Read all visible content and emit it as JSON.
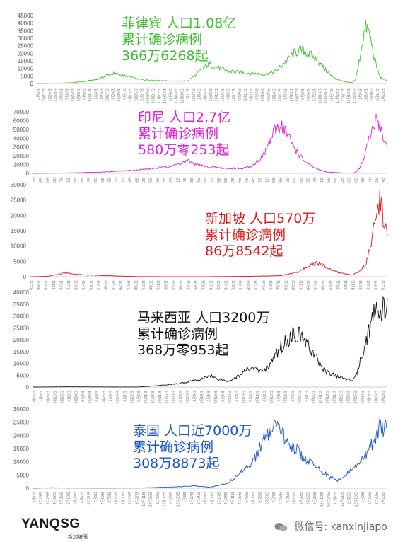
{
  "charts": [
    {
      "id": "philippines",
      "color": "#3bbf2e",
      "annotation": [
        "菲律宾 人口1.08亿",
        "累计确诊病例",
        "366万6268起"
      ],
      "yticks": [
        0,
        5000,
        10000,
        15000,
        20000,
        25000,
        30000,
        35000,
        40000,
        45000
      ],
      "xticks": [
        "3月5日",
        "3月17日",
        "3月29日",
        "4月10日",
        "4月22日",
        "5月4日",
        "5月16日",
        "5月28日",
        "6月9日",
        "6月21日",
        "7月3日",
        "7月15日",
        "7月27日",
        "8月8日",
        "8月20日",
        "9月1日",
        "9月13日",
        "9月25日",
        "10月7日",
        "10月19日",
        "10月31日",
        "11月12日",
        "11月24日",
        "12月6日",
        "12月18日",
        "12月30日",
        "1月11日",
        "1月23日",
        "2月4日",
        "2月16日",
        "2月28日",
        "3月12日",
        "3月24日",
        "4月5日",
        "4月17日",
        "4月29日",
        "5月11日",
        "5月23日",
        "6月4日",
        "6月16日",
        "6月28日",
        "7月10日",
        "7月22日",
        "8月3日",
        "8月15日",
        "8月27日",
        "9月8日",
        "9月20日",
        "10月2日",
        "10月14日",
        "10月26日",
        "11月7日",
        "11月19日",
        "12月1日",
        "12月13日",
        "12月25日",
        "1月6日",
        "1月18日",
        "1月30日",
        "2月11日",
        "2月23日"
      ]
    },
    {
      "id": "indonesia",
      "color": "#e21fd6",
      "annotation": [
        "印尼  人口2.7亿",
        "累计确诊病例",
        "580万零253起"
      ],
      "yticks": [
        0,
        10000,
        20000,
        30000,
        40000,
        50000,
        60000,
        70000
      ],
      "xticks": [
        "3月2日",
        "3月16日",
        "3月30日",
        "4月13日",
        "4月27日",
        "5月11日",
        "5月25日",
        "6月8日",
        "6月22日",
        "7月6日",
        "7月20日",
        "8月3日",
        "8月17日",
        "8月31日",
        "9月14日",
        "9月28日",
        "10月12日",
        "10月26日",
        "11月9日",
        "11月23日",
        "12月7日",
        "12月21日",
        "1月4日",
        "1月18日",
        "2月1日",
        "2月15日",
        "3月1日",
        "3月15日",
        "3月29日",
        "4月12日",
        "4月26日",
        "5月10日",
        "5月24日",
        "6月7日",
        "6月21日",
        "7月5日",
        "7月19日",
        "8月2日",
        "8月16日",
        "8月30日",
        "9月13日",
        "9月27日",
        "10月11日",
        "10月25日",
        "11月8日",
        "11月22日",
        "12月6日",
        "12月20日",
        "1月3日",
        "1月17日",
        "1月31日",
        "2月14日"
      ]
    },
    {
      "id": "singapore",
      "color": "#e01b1b",
      "annotation": [
        "新加坡  人口570万",
        "累计确诊病例",
        "86万8542起"
      ],
      "yticks": [
        0,
        5000,
        10000,
        15000,
        20000,
        25000,
        30000
      ],
      "xticks": [
        "1月23日",
        "2月8日",
        "2月24日",
        "3月11日",
        "3月27日",
        "4月12日",
        "4月28日",
        "5月14日",
        "5月30日",
        "6月15日",
        "7月1日",
        "7月17日",
        "8月2日",
        "8月18日",
        "9月3日",
        "9月19日",
        "10月5日",
        "10月21日",
        "11月6日",
        "11月22日",
        "12月8日",
        "12月24日",
        "1月9日",
        "1月25日",
        "2月10日",
        "2月26日",
        "3月14日",
        "3月30日",
        "4月15日",
        "5月1日",
        "5月17日",
        "6月2日",
        "6月18日",
        "7月4日",
        "7月20日",
        "8月5日",
        "8月21日",
        "9月6日",
        "9月22日",
        "10月8日",
        "10月24日",
        "11月9日",
        "11月25日",
        "12月11日",
        "12月27日",
        "1月12日",
        "1月28日",
        "2月13日"
      ]
    },
    {
      "id": "malaysia",
      "color": "#111111",
      "annotation": [
        "马来西亚  人口3200万",
        "累计确诊病例",
        "368万零953起"
      ],
      "yticks": [
        0,
        5000,
        10000,
        15000,
        20000,
        25000,
        30000,
        35000,
        40000
      ],
      "xticks": [
        "1月25日",
        "2月9日",
        "2月24日",
        "3月10日",
        "3月25日",
        "4月9日",
        "4月24日",
        "5月9日",
        "5月24日",
        "6月8日",
        "6月23日",
        "7月8日",
        "7月23日",
        "8月7日",
        "8月22日",
        "9月6日",
        "9月21日",
        "10月6日",
        "10月21日",
        "11月5日",
        "11月20日",
        "12月5日",
        "12月20日",
        "1月4日",
        "1月19日",
        "2月3日",
        "2月18日",
        "3月5日",
        "3月20日",
        "4月4日",
        "4月19日",
        "5月4日",
        "5月19日",
        "6月3日",
        "6月18日",
        "7月3日",
        "7月18日",
        "8月2日",
        "8月17日",
        "9月1日",
        "9月16日",
        "10月1日",
        "10月16日",
        "10月31日",
        "11月15日",
        "11月30日",
        "12月15日",
        "12月30日",
        "1月14日",
        "1月29日",
        "2月13日"
      ]
    },
    {
      "id": "thailand",
      "color": "#1a56c4",
      "annotation": [
        "泰国  人口近7000万",
        "累计确诊病例",
        "308万8873起"
      ],
      "yticks": [
        0,
        5000,
        10000,
        15000,
        20000,
        25000,
        30000
      ],
      "xticks": [
        "3月1日",
        "3月15日",
        "3月29日",
        "4月12日",
        "4月26日",
        "5月10日",
        "5月24日",
        "6月7日",
        "6月21日",
        "7月5日",
        "7月19日",
        "8月2日",
        "8月16日",
        "8月30日",
        "9月13日",
        "9月27日",
        "10月11日",
        "10月25日",
        "11月8日",
        "11月22日",
        "12月6日",
        "12月20日",
        "1月3日",
        "1月17日",
        "1月31日",
        "2月14日",
        "2月28日",
        "3月14日",
        "3月28日",
        "4月11日",
        "4月25日",
        "5月9日",
        "5月23日",
        "6月6日",
        "6月20日",
        "7月4日",
        "7月18日",
        "8月1日",
        "8月15日",
        "8月29日",
        "9月12日",
        "9月26日",
        "10月10日",
        "10月24日",
        "11月7日",
        "11月21日",
        "12月5日",
        "12月19日",
        "1月2日",
        "1月16日",
        "1月30日",
        "2月13日"
      ]
    }
  ],
  "chart_data": [
    {
      "type": "line",
      "series": [
        {
          "values_shape": "Philippines daily confirmed cases"
        }
      ],
      "ylim": [
        0,
        45000
      ],
      "anchors": [
        [
          0,
          0
        ],
        [
          0.05,
          200
        ],
        [
          0.1,
          500
        ],
        [
          0.14,
          1500
        ],
        [
          0.18,
          3000
        ],
        [
          0.2,
          5500
        ],
        [
          0.22,
          6500
        ],
        [
          0.25,
          5000
        ],
        [
          0.28,
          3500
        ],
        [
          0.3,
          2500
        ],
        [
          0.35,
          2000
        ],
        [
          0.4,
          1500
        ],
        [
          0.43,
          1800
        ],
        [
          0.45,
          5000
        ],
        [
          0.47,
          9000
        ],
        [
          0.49,
          13000
        ],
        [
          0.51,
          11000
        ],
        [
          0.55,
          8000
        ],
        [
          0.6,
          7000
        ],
        [
          0.65,
          6000
        ],
        [
          0.68,
          8000
        ],
        [
          0.7,
          12000
        ],
        [
          0.72,
          17000
        ],
        [
          0.74,
          21000
        ],
        [
          0.76,
          22000
        ],
        [
          0.78,
          19000
        ],
        [
          0.8,
          15000
        ],
        [
          0.82,
          10000
        ],
        [
          0.84,
          5000
        ],
        [
          0.86,
          2500
        ],
        [
          0.88,
          1000
        ],
        [
          0.9,
          500
        ],
        [
          0.91,
          3000
        ],
        [
          0.92,
          15000
        ],
        [
          0.93,
          30000
        ],
        [
          0.94,
          38000
        ],
        [
          0.95,
          32000
        ],
        [
          0.96,
          20000
        ],
        [
          0.97,
          10000
        ],
        [
          0.98,
          4000
        ],
        [
          1,
          1500
        ]
      ]
    },
    {
      "type": "line",
      "series": [
        {
          "values_shape": "Indonesia daily confirmed cases"
        }
      ],
      "ylim": [
        0,
        70000
      ],
      "anchors": [
        [
          0,
          0
        ],
        [
          0.1,
          500
        ],
        [
          0.2,
          1500
        ],
        [
          0.3,
          4000
        ],
        [
          0.35,
          6000
        ],
        [
          0.4,
          9000
        ],
        [
          0.42,
          12000
        ],
        [
          0.44,
          14000
        ],
        [
          0.46,
          10000
        ],
        [
          0.5,
          7000
        ],
        [
          0.55,
          5500
        ],
        [
          0.6,
          6000
        ],
        [
          0.62,
          9000
        ],
        [
          0.65,
          20000
        ],
        [
          0.67,
          38000
        ],
        [
          0.69,
          52000
        ],
        [
          0.7,
          56000
        ],
        [
          0.71,
          50000
        ],
        [
          0.73,
          35000
        ],
        [
          0.75,
          22000
        ],
        [
          0.77,
          12000
        ],
        [
          0.8,
          5000
        ],
        [
          0.83,
          1500
        ],
        [
          0.88,
          400
        ],
        [
          0.9,
          300
        ],
        [
          0.91,
          1000
        ],
        [
          0.92,
          5000
        ],
        [
          0.93,
          12000
        ],
        [
          0.95,
          40000
        ],
        [
          0.97,
          62000
        ],
        [
          0.98,
          55000
        ],
        [
          0.99,
          38000
        ],
        [
          1,
          30000
        ]
      ]
    },
    {
      "type": "line",
      "series": [
        {
          "values_shape": "Singapore daily confirmed cases"
        }
      ],
      "ylim": [
        0,
        30000
      ],
      "anchors": [
        [
          0,
          0
        ],
        [
          0.05,
          100
        ],
        [
          0.08,
          800
        ],
        [
          0.1,
          1200
        ],
        [
          0.12,
          900
        ],
        [
          0.15,
          600
        ],
        [
          0.2,
          400
        ],
        [
          0.25,
          200
        ],
        [
          0.3,
          50
        ],
        [
          0.4,
          20
        ],
        [
          0.5,
          30
        ],
        [
          0.6,
          100
        ],
        [
          0.7,
          300
        ],
        [
          0.75,
          1500
        ],
        [
          0.78,
          3500
        ],
        [
          0.8,
          4500
        ],
        [
          0.82,
          3800
        ],
        [
          0.84,
          2500
        ],
        [
          0.86,
          1500
        ],
        [
          0.88,
          900
        ],
        [
          0.9,
          600
        ],
        [
          0.92,
          1500
        ],
        [
          0.94,
          4000
        ],
        [
          0.95,
          9000
        ],
        [
          0.96,
          14000
        ],
        [
          0.97,
          20000
        ],
        [
          0.98,
          26000
        ],
        [
          0.99,
          18000
        ],
        [
          1,
          14000
        ]
      ]
    },
    {
      "type": "line",
      "series": [
        {
          "values_shape": "Malaysia daily confirmed cases"
        }
      ],
      "ylim": [
        0,
        40000
      ],
      "anchors": [
        [
          0,
          0
        ],
        [
          0.1,
          100
        ],
        [
          0.2,
          50
        ],
        [
          0.3,
          20
        ],
        [
          0.35,
          600
        ],
        [
          0.4,
          1200
        ],
        [
          0.45,
          2500
        ],
        [
          0.48,
          3500
        ],
        [
          0.5,
          5000
        ],
        [
          0.52,
          3500
        ],
        [
          0.55,
          2500
        ],
        [
          0.58,
          4500
        ],
        [
          0.6,
          7000
        ],
        [
          0.62,
          8500
        ],
        [
          0.64,
          6500
        ],
        [
          0.66,
          8000
        ],
        [
          0.68,
          12000
        ],
        [
          0.7,
          17000
        ],
        [
          0.72,
          20000
        ],
        [
          0.74,
          23000
        ],
        [
          0.76,
          21000
        ],
        [
          0.78,
          17000
        ],
        [
          0.8,
          12000
        ],
        [
          0.82,
          7500
        ],
        [
          0.84,
          5500
        ],
        [
          0.86,
          4500
        ],
        [
          0.88,
          3500
        ],
        [
          0.9,
          3000
        ],
        [
          0.91,
          4500
        ],
        [
          0.92,
          9000
        ],
        [
          0.93,
          14000
        ],
        [
          0.94,
          20000
        ],
        [
          0.95,
          25000
        ],
        [
          0.96,
          30000
        ],
        [
          0.98,
          32000
        ],
        [
          1,
          33000
        ]
      ]
    },
    {
      "type": "line",
      "series": [
        {
          "values_shape": "Thailand daily confirmed cases"
        }
      ],
      "ylim": [
        0,
        30000
      ],
      "anchors": [
        [
          0,
          0
        ],
        [
          0.05,
          200
        ],
        [
          0.1,
          100
        ],
        [
          0.2,
          50
        ],
        [
          0.3,
          100
        ],
        [
          0.4,
          500
        ],
        [
          0.45,
          900
        ],
        [
          0.48,
          700
        ],
        [
          0.5,
          300
        ],
        [
          0.55,
          2000
        ],
        [
          0.58,
          5000
        ],
        [
          0.6,
          8000
        ],
        [
          0.62,
          10000
        ],
        [
          0.64,
          15000
        ],
        [
          0.66,
          20000
        ],
        [
          0.68,
          23000
        ],
        [
          0.7,
          21000
        ],
        [
          0.72,
          18000
        ],
        [
          0.74,
          15000
        ],
        [
          0.76,
          12000
        ],
        [
          0.78,
          10000
        ],
        [
          0.8,
          8000
        ],
        [
          0.82,
          6000
        ],
        [
          0.84,
          4000
        ],
        [
          0.86,
          3000
        ],
        [
          0.88,
          4500
        ],
        [
          0.9,
          7000
        ],
        [
          0.92,
          9000
        ],
        [
          0.94,
          13000
        ],
        [
          0.96,
          18000
        ],
        [
          0.98,
          24000
        ],
        [
          0.99,
          23000
        ],
        [
          1,
          21000
        ]
      ]
    }
  ],
  "footer": {
    "logo": "YANQSG",
    "logo_sub": "新加坡眼",
    "wechat": "微信号: kanxinjiapo"
  }
}
